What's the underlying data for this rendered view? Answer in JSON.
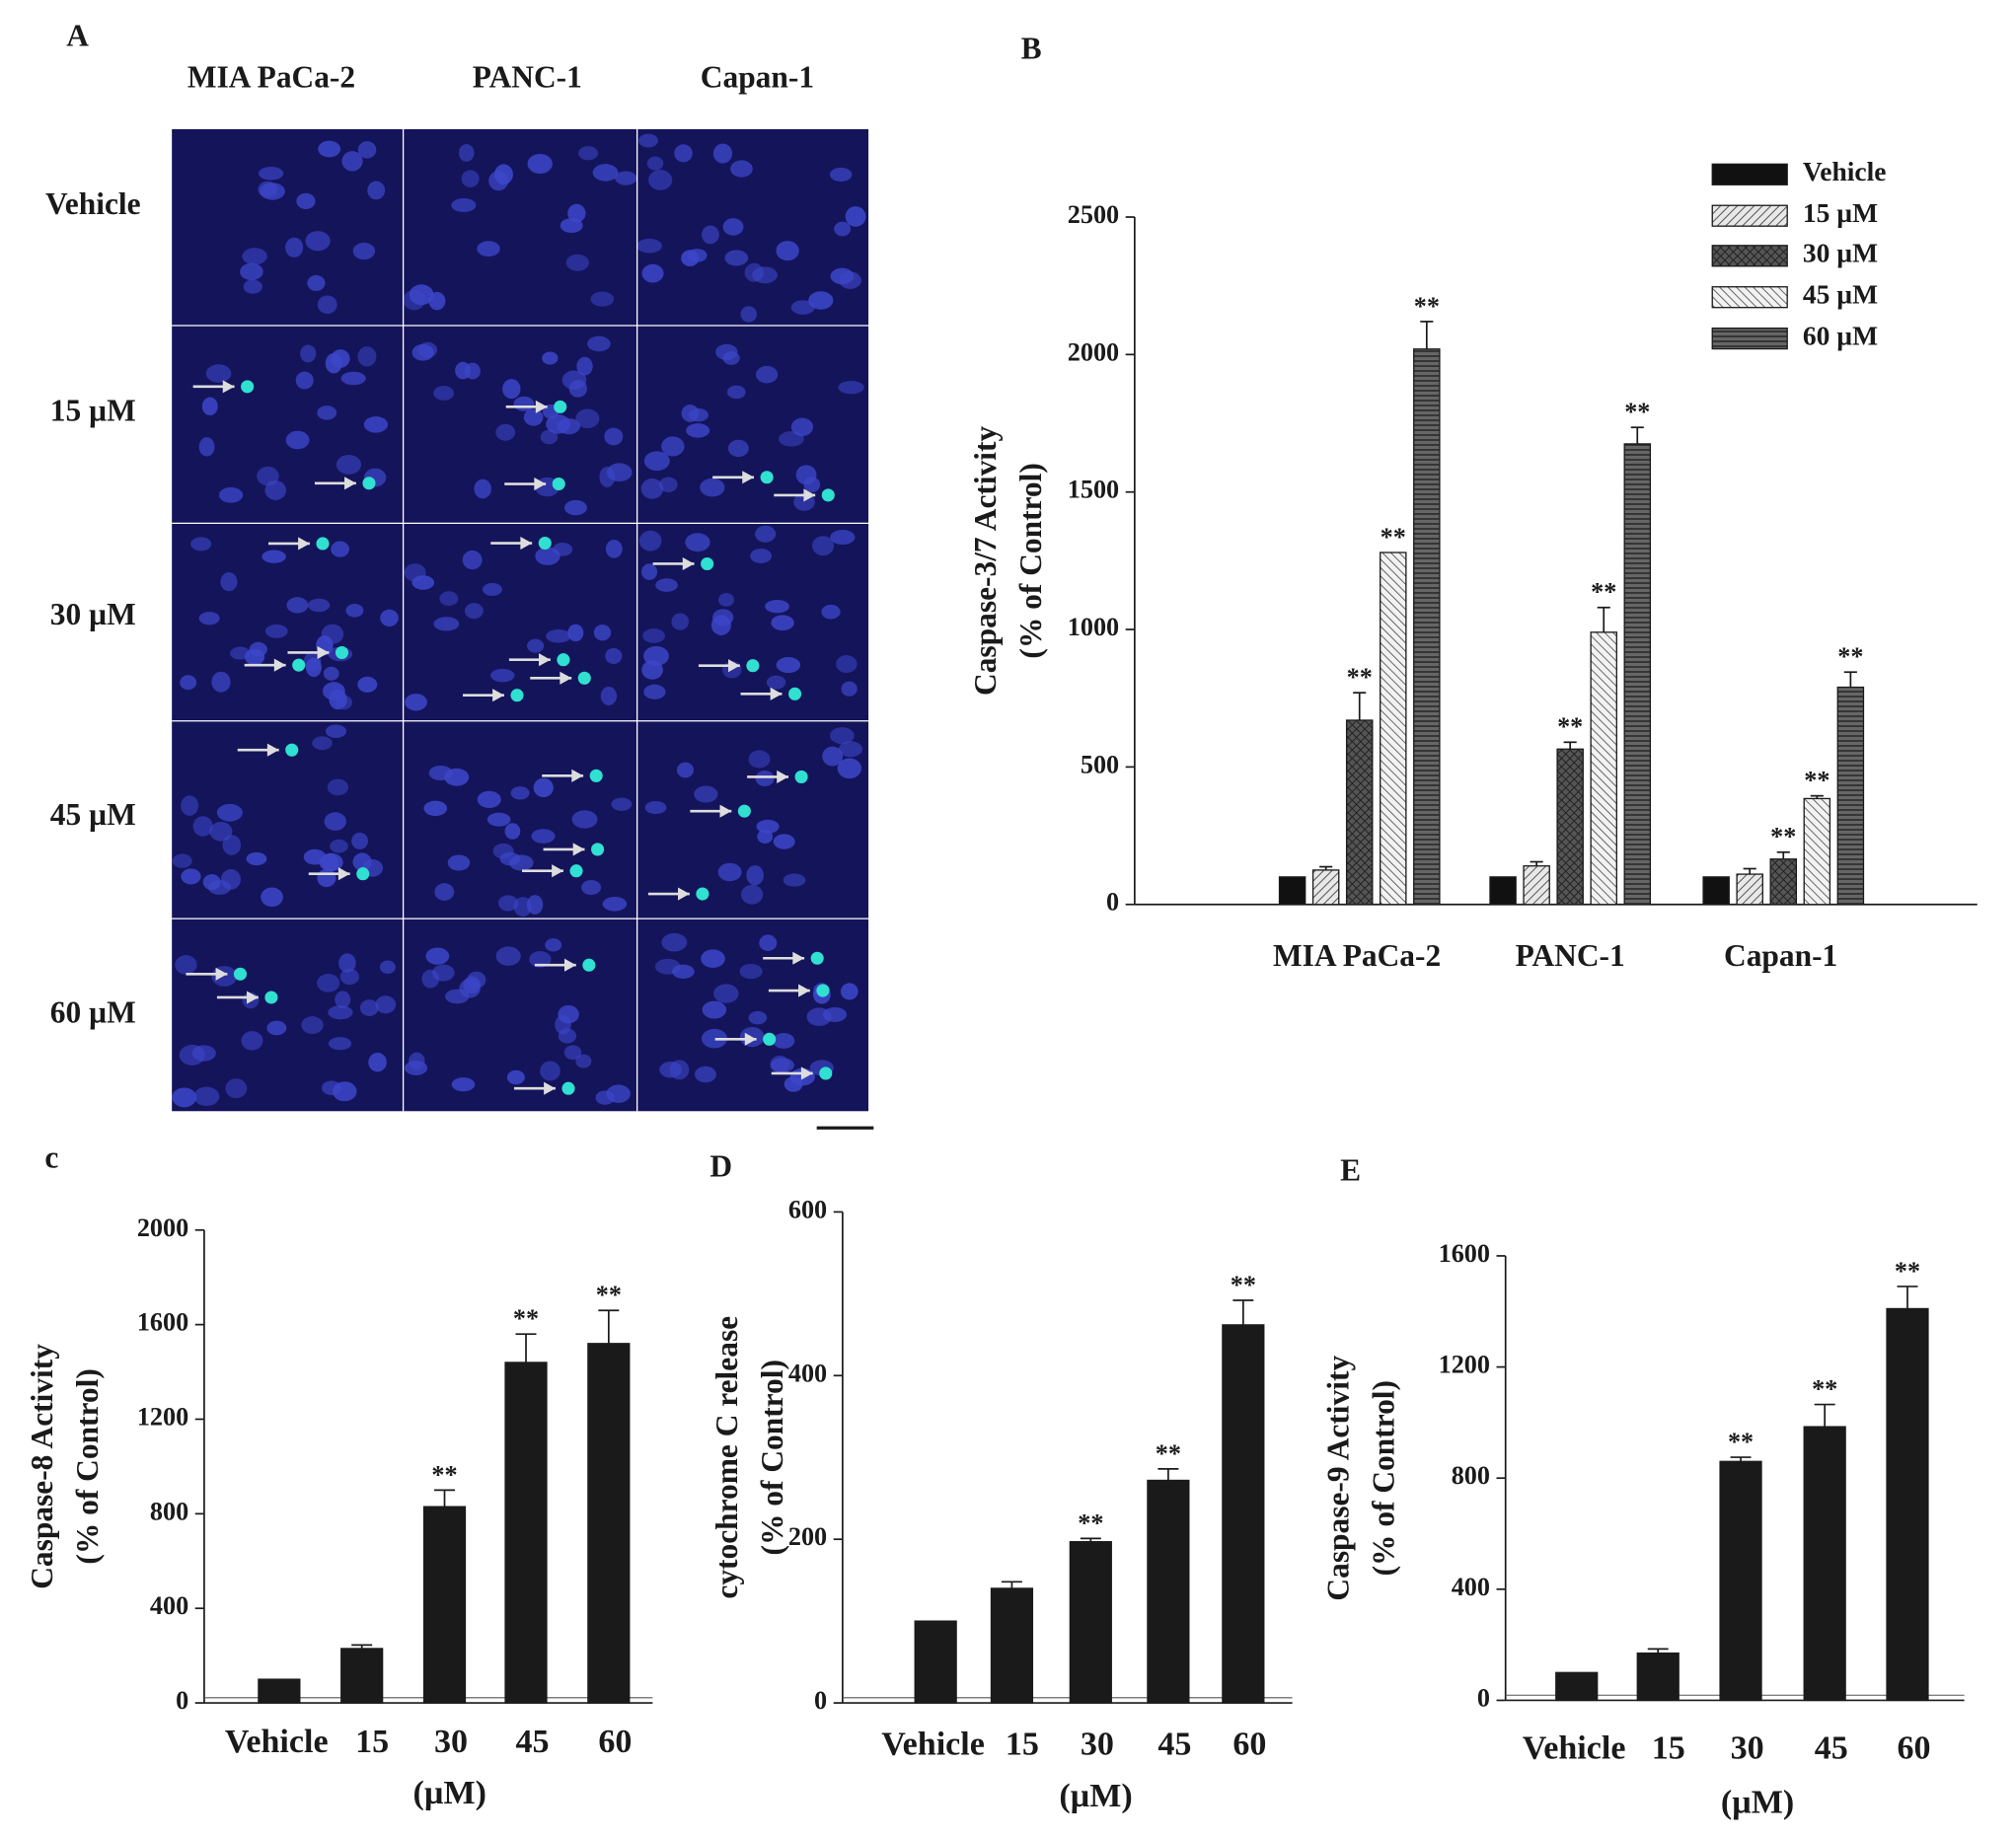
{
  "panel_labels": {
    "a": "A",
    "b": "B",
    "c": "c",
    "d": "D",
    "e": "E"
  },
  "micrograph": {
    "columns": [
      "MIA PaCa-2",
      "PANC-1",
      "Capan-1"
    ],
    "rows": [
      "Vehicle",
      "15 µM",
      "30 µM",
      "45 µM",
      "60 µM"
    ],
    "background_color": "#14145a",
    "nucleus_color": "#3c46c8",
    "apoptotic_color": "#30e0d0"
  },
  "chart_data": [
    {
      "id": "B",
      "type": "bar",
      "ylabel_lines": [
        "Caspase-3/7 Activity",
        "(% of Control)"
      ],
      "categories": [
        "MIA PaCa-2",
        "PANC-1",
        "Capan-1"
      ],
      "ylim": [
        0,
        2500
      ],
      "yticks": [
        "0",
        "500",
        "1000",
        "1500",
        "2000",
        "2500"
      ],
      "legend_position": "top-right",
      "series": [
        {
          "name": "Vehicle",
          "pattern": "solid-black",
          "values": [
            100,
            100,
            100
          ],
          "errors": [
            0,
            0,
            0
          ],
          "sig": [
            "",
            "",
            ""
          ]
        },
        {
          "name": "15 µM",
          "pattern": "light-diagonal",
          "values": [
            125,
            140,
            110
          ],
          "errors": [
            12,
            15,
            20
          ],
          "sig": [
            "",
            "",
            ""
          ]
        },
        {
          "name": "30 µM",
          "pattern": "dark-crosshatch",
          "values": [
            670,
            565,
            165
          ],
          "errors": [
            100,
            25,
            25
          ],
          "sig": [
            "**",
            "**",
            "**"
          ]
        },
        {
          "name": "45 µM",
          "pattern": "back-diagonal",
          "values": [
            1280,
            990,
            385
          ],
          "errors": [
            0,
            90,
            10
          ],
          "sig": [
            "**",
            "**",
            "**"
          ]
        },
        {
          "name": "60 µM",
          "pattern": "horizontal-lines",
          "values": [
            2020,
            1675,
            790
          ],
          "errors": [
            100,
            60,
            55
          ],
          "sig": [
            "**",
            "**",
            "**"
          ]
        }
      ]
    },
    {
      "id": "C",
      "type": "bar",
      "ylabel_lines": [
        "Caspase-8 Activity",
        "(% of Control)"
      ],
      "categories": [
        "Vehicle",
        "15",
        "30",
        "45",
        "60"
      ],
      "xlabel": "(µM)",
      "ylim": [
        0,
        2000
      ],
      "yticks": [
        "0",
        "400",
        "800",
        "1200",
        "1600",
        "2000"
      ],
      "values": [
        100,
        230,
        830,
        1440,
        1520
      ],
      "errors": [
        0,
        15,
        70,
        120,
        140
      ],
      "sig": [
        "",
        "",
        "**",
        "**",
        "**"
      ]
    },
    {
      "id": "D",
      "type": "bar",
      "ylabel_lines": [
        "cytochrome C release",
        "(% of Control)"
      ],
      "categories": [
        "Vehicle",
        "15",
        "30",
        "45",
        "60"
      ],
      "xlabel": "(µM)",
      "ylim": [
        0,
        600
      ],
      "yticks": [
        "0",
        "200",
        "400",
        "600"
      ],
      "values": [
        100,
        140,
        197,
        272,
        462
      ],
      "errors": [
        0,
        8,
        4,
        14,
        30
      ],
      "sig": [
        "",
        "",
        "**",
        "**",
        "**"
      ]
    },
    {
      "id": "E",
      "type": "bar",
      "ylabel_lines": [
        "Caspase-9 Activity",
        "(% of Control)"
      ],
      "categories": [
        "Vehicle",
        "15",
        "30",
        "45",
        "60"
      ],
      "xlabel": "(µM)",
      "ylim": [
        0,
        1600
      ],
      "yticks": [
        "0",
        "400",
        "800",
        "1200",
        "1600"
      ],
      "values": [
        100,
        170,
        860,
        985,
        1410
      ],
      "errors": [
        0,
        15,
        15,
        80,
        80
      ],
      "sig": [
        "",
        "",
        "**",
        "**",
        "**"
      ]
    }
  ]
}
